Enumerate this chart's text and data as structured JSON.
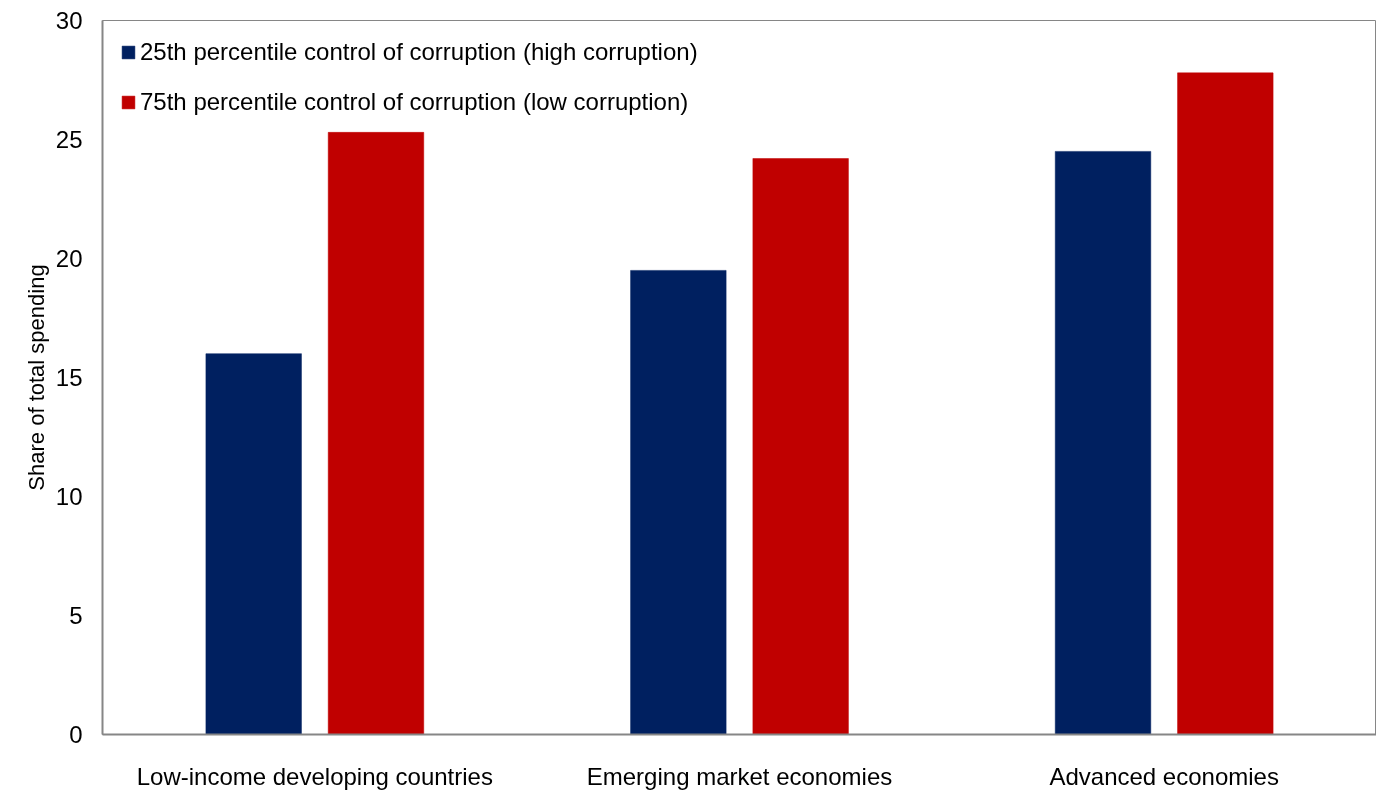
{
  "chart_data": {
    "type": "bar",
    "ylabel": "Share of total spending",
    "categories": [
      "Low-income developing countries",
      "Emerging market economies",
      "Advanced economies"
    ],
    "series": [
      {
        "name": "25th percentile control of corruption (high corruption)",
        "color": "#002060",
        "values": [
          16.0,
          19.5,
          24.5
        ]
      },
      {
        "name": "75th percentile control of corruption (low corruption)",
        "color": "#c00000",
        "values": [
          25.3,
          24.2,
          27.8
        ]
      }
    ],
    "ylim": [
      0,
      30
    ],
    "yticks": [
      0,
      5,
      10,
      15,
      20,
      25,
      30
    ],
    "legend": "top left",
    "grid": false
  }
}
